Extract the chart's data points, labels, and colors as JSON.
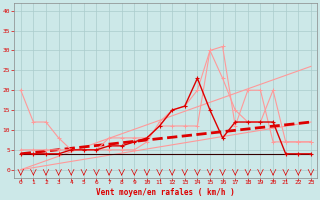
{
  "x": [
    0,
    1,
    2,
    3,
    4,
    5,
    6,
    7,
    8,
    9,
    10,
    11,
    12,
    13,
    14,
    15,
    16,
    17,
    18,
    19,
    20,
    21,
    22,
    23
  ],
  "line_rafales_max": [
    20,
    12,
    12,
    8,
    5,
    5,
    5,
    8,
    8,
    8,
    8,
    11,
    11,
    11,
    11,
    30,
    31,
    11,
    20,
    20,
    7,
    7,
    7,
    7
  ],
  "line_rafales_mid": [
    5,
    5,
    5,
    5,
    5,
    5,
    5,
    5,
    5,
    5,
    7,
    12,
    15,
    16,
    20,
    30,
    23,
    15,
    12,
    12,
    20,
    7,
    7,
    7
  ],
  "line_vent_moyen": [
    4,
    4,
    4,
    4,
    5,
    5,
    5,
    6,
    6,
    7,
    8,
    11,
    15,
    16,
    23,
    15,
    8,
    12,
    12,
    12,
    12,
    4,
    4,
    4
  ],
  "slope_upper": [
    0,
    1.13,
    2.26,
    3.39,
    4.52,
    5.65,
    6.78,
    7.91,
    9.04,
    10.17,
    11.3,
    12.43,
    13.57,
    14.7,
    15.83,
    16.96,
    18.09,
    19.22,
    20.35,
    21.48,
    22.61,
    23.74,
    24.87,
    26.0
  ],
  "slope_lower": [
    0,
    0.52,
    1.04,
    1.57,
    2.09,
    2.61,
    3.13,
    3.65,
    4.17,
    4.7,
    5.22,
    5.74,
    6.26,
    6.78,
    7.3,
    7.83,
    8.35,
    8.87,
    9.39,
    9.91,
    10.43,
    10.96,
    11.48,
    12.0
  ],
  "slope_dashed": [
    4,
    4.35,
    4.7,
    5.04,
    5.39,
    5.74,
    6.09,
    6.43,
    6.78,
    7.13,
    7.48,
    7.83,
    8.17,
    8.52,
    8.87,
    9.22,
    9.57,
    9.91,
    10.26,
    10.61,
    10.96,
    11.3,
    11.65,
    12.0
  ],
  "line_flat": [
    4,
    4,
    4,
    4,
    4,
    4,
    4,
    4,
    4,
    4,
    4,
    4,
    4,
    4,
    4,
    4,
    4,
    4,
    4,
    4,
    4,
    4,
    4,
    4
  ],
  "bg_color": "#cce8e8",
  "grid_color": "#aacccc",
  "color_light": "#ff9999",
  "color_dark": "#dd0000",
  "color_black": "#330000",
  "xlabel": "Vent moyen/en rafales ( km/h )",
  "xlim_lo": -0.5,
  "xlim_hi": 23.5,
  "ylim_lo": -2,
  "ylim_hi": 42,
  "yticks": [
    0,
    5,
    10,
    15,
    20,
    25,
    30,
    35,
    40
  ],
  "xticks": [
    0,
    1,
    2,
    3,
    4,
    5,
    6,
    7,
    8,
    9,
    10,
    11,
    12,
    13,
    14,
    15,
    16,
    17,
    18,
    19,
    20,
    21,
    22,
    23
  ]
}
